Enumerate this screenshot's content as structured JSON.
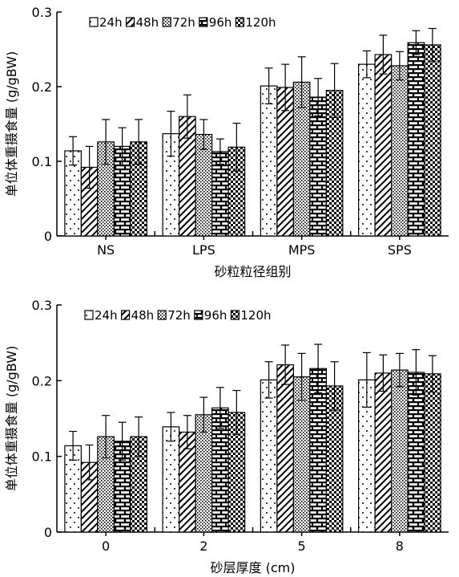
{
  "chart_data": [
    {
      "type": "bar",
      "xlabel": "砂粒粒径组别",
      "ylabel": "单位体重摄食量 (g/gBW)",
      "categories": [
        "NS",
        "LPS",
        "MPS",
        "SPS"
      ],
      "ylim": [
        0,
        0.3
      ],
      "yticks": [
        "0",
        "0.1",
        "0.2",
        "0.3"
      ],
      "legend_position": "top-left",
      "series": [
        {
          "name": "24h",
          "pattern": "dots",
          "values": [
            0.114,
            0.137,
            0.201,
            0.23
          ],
          "errors": [
            0.019,
            0.03,
            0.024,
            0.018
          ]
        },
        {
          "name": "48h",
          "pattern": "diagonal",
          "values": [
            0.092,
            0.16,
            0.199,
            0.243
          ],
          "errors": [
            0.028,
            0.029,
            0.031,
            0.026
          ]
        },
        {
          "name": "72h",
          "pattern": "stipple",
          "values": [
            0.126,
            0.136,
            0.206,
            0.228
          ],
          "errors": [
            0.03,
            0.02,
            0.034,
            0.019
          ]
        },
        {
          "name": "96h",
          "pattern": "brick",
          "values": [
            0.12,
            0.113,
            0.186,
            0.259
          ],
          "errors": [
            0.025,
            0.017,
            0.025,
            0.016
          ]
        },
        {
          "name": "120h",
          "pattern": "checker",
          "values": [
            0.126,
            0.119,
            0.195,
            0.256
          ],
          "errors": [
            0.03,
            0.032,
            0.036,
            0.022
          ]
        }
      ]
    },
    {
      "type": "bar",
      "xlabel": "砂层厚度 (cm)",
      "ylabel": "单位体重摄食量 (g/gBW)",
      "categories": [
        "0",
        "2",
        "5",
        "8"
      ],
      "ylim": [
        0,
        0.3
      ],
      "yticks": [
        "0",
        "0.1",
        "0.2",
        "0.3"
      ],
      "legend_position": "top-left",
      "series": [
        {
          "name": "24h",
          "pattern": "dots",
          "values": [
            0.114,
            0.139,
            0.201,
            0.201
          ],
          "errors": [
            0.019,
            0.019,
            0.024,
            0.036
          ]
        },
        {
          "name": "48h",
          "pattern": "diagonal",
          "values": [
            0.092,
            0.132,
            0.221,
            0.21
          ],
          "errors": [
            0.023,
            0.022,
            0.026,
            0.024
          ]
        },
        {
          "name": "72h",
          "pattern": "stipple",
          "values": [
            0.126,
            0.155,
            0.205,
            0.214
          ],
          "errors": [
            0.028,
            0.023,
            0.031,
            0.022
          ]
        },
        {
          "name": "96h",
          "pattern": "brick",
          "values": [
            0.12,
            0.164,
            0.216,
            0.211
          ],
          "errors": [
            0.025,
            0.027,
            0.032,
            0.03
          ]
        },
        {
          "name": "120h",
          "pattern": "checker",
          "values": [
            0.126,
            0.158,
            0.193,
            0.209
          ],
          "errors": [
            0.026,
            0.029,
            0.032,
            0.024
          ]
        }
      ]
    }
  ]
}
